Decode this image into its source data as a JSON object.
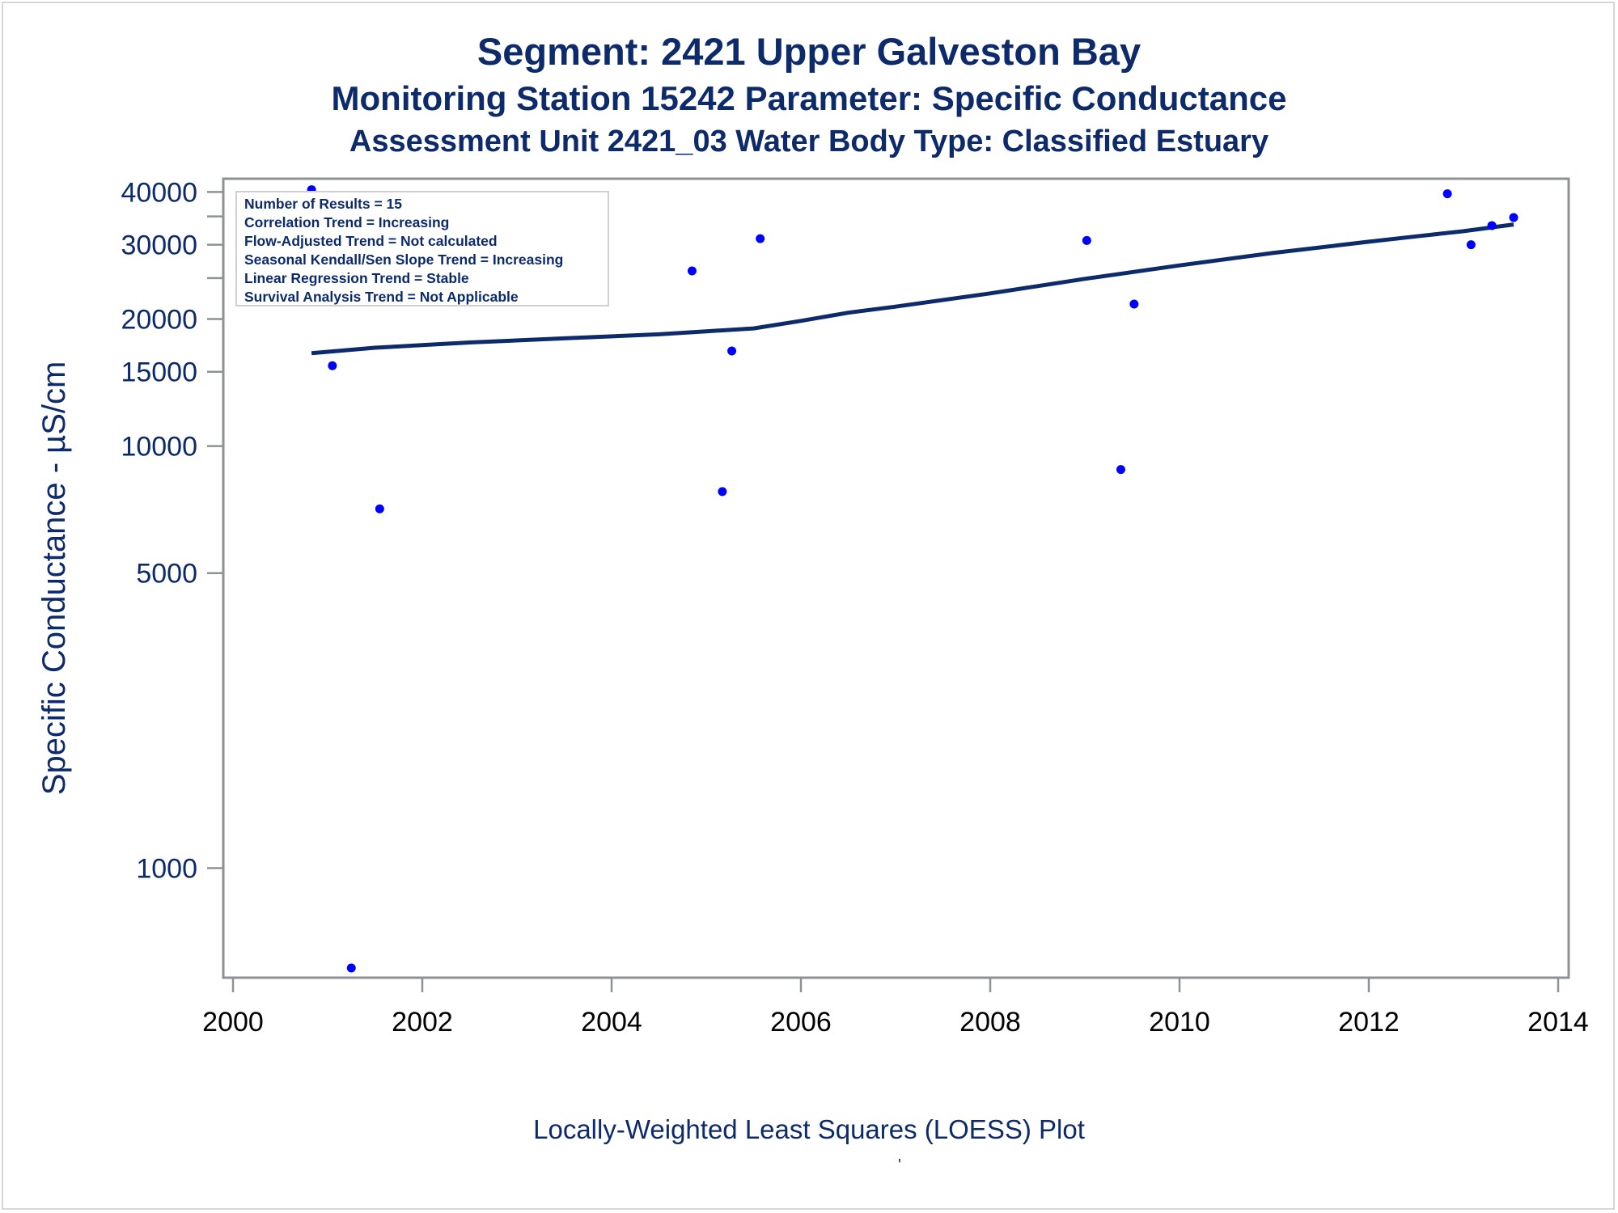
{
  "title": "Segment: 2421  Upper Galveston Bay",
  "subtitle1": "Monitoring Station 15242 Parameter: Specific Conductance",
  "subtitle2": "Assessment Unit 2421_03   Water Body Type: Classified Estuary",
  "footnote": "'",
  "colors": {
    "text": "#0d2a6b",
    "points": "#0000ff",
    "trend": "#0d2a6b",
    "frame": "#8c9296"
  },
  "chart_data": {
    "type": "scatter",
    "xlabel": "Locally-Weighted Least Squares (LOESS) Plot",
    "ylabel": "Specific Conductance -  µS/cm",
    "xlim": [
      2000,
      2014
    ],
    "ylim": [
      550,
      43000
    ],
    "yscale": "log",
    "x_ticks": [
      2000,
      2002,
      2004,
      2006,
      2008,
      2010,
      2012,
      2014
    ],
    "y_ticks": [
      1000,
      5000,
      10000,
      15000,
      20000,
      30000,
      40000
    ],
    "y_ticks_unlabeled": [
      25000,
      35000
    ],
    "grid": false,
    "legend_position": "top-left",
    "stats_box": [
      "Number of Results = 15",
      "Correlation Trend = Increasing",
      "Flow-Adjusted Trend = Not calculated",
      "Seasonal Kendall/Sen Slope Trend = Increasing",
      "Linear Regression Trend = Stable",
      "Survival Analysis Trend = Not Applicable"
    ],
    "points": [
      {
        "x": 2000.83,
        "y": 40500
      },
      {
        "x": 2001.05,
        "y": 15500
      },
      {
        "x": 2001.25,
        "y": 580
      },
      {
        "x": 2001.55,
        "y": 7100
      },
      {
        "x": 2004.85,
        "y": 26000
      },
      {
        "x": 2005.17,
        "y": 7800
      },
      {
        "x": 2005.27,
        "y": 16800
      },
      {
        "x": 2005.57,
        "y": 31000
      },
      {
        "x": 2009.02,
        "y": 30700
      },
      {
        "x": 2009.38,
        "y": 8800
      },
      {
        "x": 2009.52,
        "y": 21700
      },
      {
        "x": 2012.83,
        "y": 39600
      },
      {
        "x": 2013.08,
        "y": 30000
      },
      {
        "x": 2013.3,
        "y": 33300
      },
      {
        "x": 2013.53,
        "y": 34800
      }
    ],
    "series": [
      {
        "type": "line",
        "x": [
          2000.83,
          2001.5,
          2002.5,
          2003.5,
          2004.5,
          2005.0,
          2005.5,
          2006.0,
          2006.5,
          2007.0,
          2008.0,
          2009.0,
          2010.0,
          2011.0,
          2012.0,
          2012.5,
          2013.0,
          2013.53
        ],
        "y": [
          16600,
          17100,
          17600,
          18000,
          18400,
          18700,
          19000,
          19800,
          20700,
          21400,
          23000,
          24900,
          26800,
          28700,
          30500,
          31400,
          32300,
          33500
        ]
      }
    ]
  }
}
